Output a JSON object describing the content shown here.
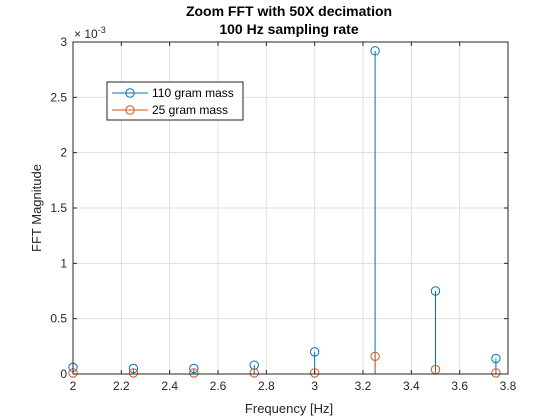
{
  "chart_data": {
    "type": "stem",
    "title": [
      "Zoom FFT with 50X decimation",
      "100 Hz sampling rate"
    ],
    "xlabel": "Frequency [Hz]",
    "ylabel": "FFT Magnitude",
    "y_exponent_label": "× 10",
    "y_exponent_power": "-3",
    "xlim": [
      2,
      3.8
    ],
    "ylim": [
      0,
      3
    ],
    "x_ticks": [
      2,
      2.2,
      2.4,
      2.6,
      2.8,
      3,
      3.2,
      3.4,
      3.6,
      3.8
    ],
    "x_tick_labels": [
      "2",
      "2.2",
      "2.4",
      "2.6",
      "2.8",
      "3",
      "3.2",
      "3.4",
      "3.6",
      "3.8"
    ],
    "y_ticks": [
      0,
      0.5,
      1,
      1.5,
      2,
      2.5,
      3
    ],
    "y_tick_labels": [
      "0",
      "0.5",
      "1",
      "1.5",
      "2",
      "2.5",
      "3"
    ],
    "grid": true,
    "legend_position": "top-left",
    "series": [
      {
        "name": "110 gram mass",
        "color": "#0072BD",
        "x": [
          2,
          2.25,
          2.5,
          2.75,
          3,
          3.25,
          3.5,
          3.75
        ],
        "y": [
          0.06,
          0.05,
          0.05,
          0.08,
          0.2,
          2.92,
          0.75,
          0.14
        ]
      },
      {
        "name": "25 gram mass",
        "color": "#D95319",
        "x": [
          2,
          2.25,
          2.5,
          2.75,
          3,
          3.25,
          3.5,
          3.75
        ],
        "y": [
          0.01,
          0.01,
          0.01,
          0.01,
          0.01,
          0.16,
          0.04,
          0.01
        ]
      }
    ]
  }
}
